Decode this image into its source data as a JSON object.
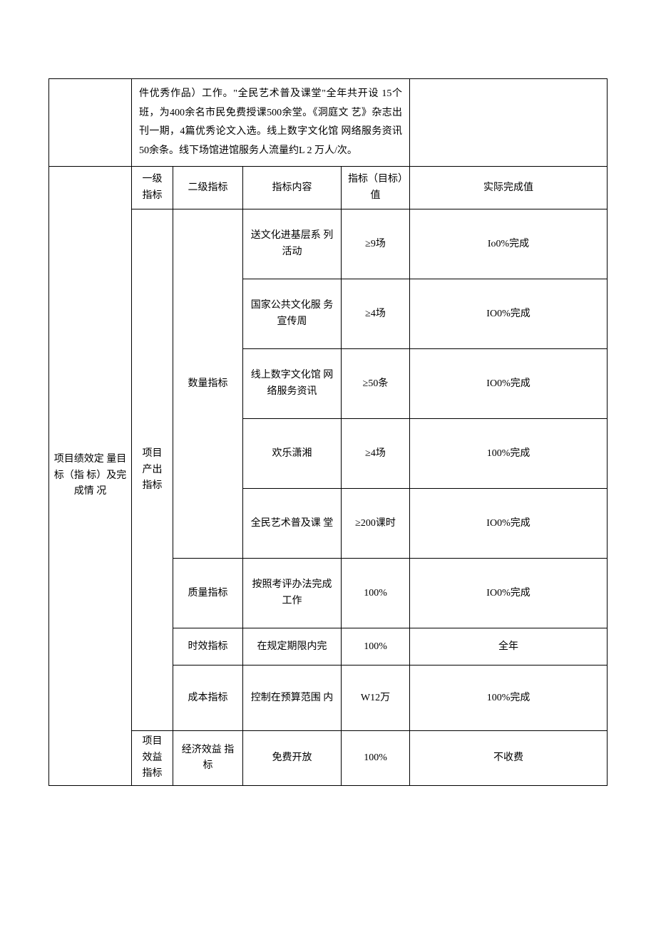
{
  "top_desc": "件优秀作品）工作。\"全民艺术普及课堂\"全年共开设  15个班，为400余名市民免费授课500余堂。《洞庭文  艺》杂志出刊一期，4篇优秀论文入选。线上数字文化馆  网络服务资讯50余条。线下场馆进馆服务人流量约L 2 万人/次。",
  "side_label": "项目绩效定 量目标（指 标）及完成情 况",
  "headers": {
    "lv1": "一级 指标",
    "lv2": "二级指标",
    "content": "指标内容",
    "target": "指标（目标）值",
    "actual": "实际完成值"
  },
  "group_output": "项目 产出 指标",
  "group_benefit": "项目 效益 指标",
  "lv2": {
    "qty": "数量指标",
    "quality": "质量指标",
    "time": "时效指标",
    "cost": "成本指标",
    "econ": "经济效益 指标"
  },
  "rows": {
    "r1": {
      "content": "送文化进基层系 列活动",
      "target": "≥9场",
      "actual": "Io0%完成"
    },
    "r2": {
      "content": "国家公共文化服 务宣传周",
      "target": "≥4场",
      "actual": "IO0%完成"
    },
    "r3": {
      "content": "线上数字文化馆 网络服务资讯",
      "target": "≥50条",
      "actual": "IO0%完成"
    },
    "r4": {
      "content": "欢乐潇湘",
      "target": "≥4场",
      "actual": "100%完成"
    },
    "r5": {
      "content": "全民艺术普及课 堂",
      "target": "≥200课时",
      "actual": "IO0%完成"
    },
    "r6": {
      "content": "按照考评办法完成工作",
      "target": "100%",
      "actual": "IO0%完成"
    },
    "r7": {
      "content": "在规定期限内完",
      "target": "100%",
      "actual": "全年"
    },
    "r8": {
      "content": "控制在预算范围 内",
      "target": "W12万",
      "actual": "100%完成"
    },
    "r9": {
      "content": "免费开放",
      "target": "100%",
      "actual": "不收费"
    }
  }
}
